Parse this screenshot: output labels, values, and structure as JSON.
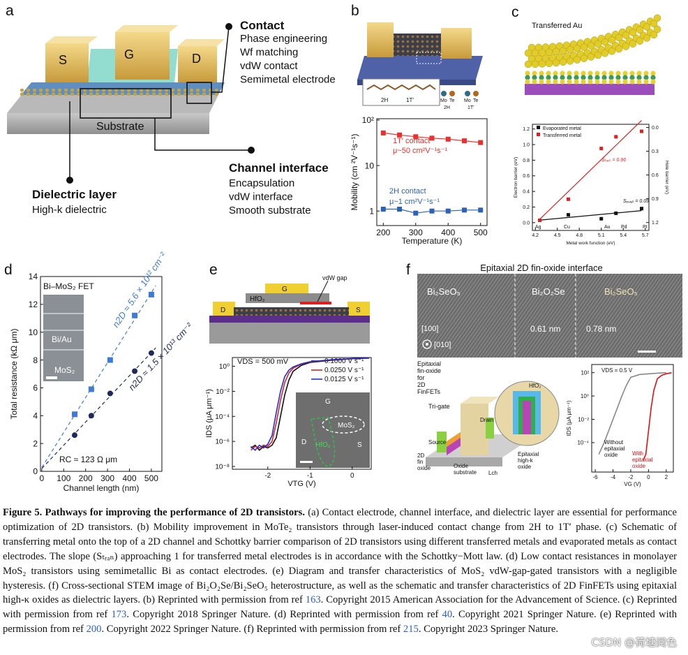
{
  "letters": [
    "a",
    "b",
    "c",
    "d",
    "e",
    "f"
  ],
  "diagram_a": {
    "electrodes": [
      "S",
      "G",
      "D"
    ],
    "substrate": "Substrate",
    "callouts": [
      {
        "title": "Contact",
        "items": [
          "Phase engineering",
          "Wf matching",
          "vdW contact",
          "Semimetal electrode"
        ]
      },
      {
        "title": "Channel interface",
        "items": [
          "Encapsulation",
          "vdW interface",
          "Smooth substrate"
        ]
      },
      {
        "title": "Dielectric layer",
        "items": [
          "High-k dielectric"
        ]
      }
    ]
  },
  "diagram_b": {
    "phases": [
      "2H",
      "1T′"
    ],
    "legend": [
      "Mo",
      "Te",
      "2H",
      "Mo",
      "Te",
      "1T′"
    ]
  },
  "diagram_c": {
    "label": "Transferred Au"
  },
  "diagram_e": {
    "labels": [
      "vdW gap",
      "G",
      "HfO₂",
      "D",
      "S"
    ],
    "inset": [
      "G",
      "MoS₂",
      "D",
      "S",
      "HfO₂"
    ]
  },
  "diagram_f": {
    "title": "Epitaxial 2D fin-oxide interface",
    "stem": [
      "Bi₂SeO₅",
      "Bi₂O₂Se",
      "Bi₂SeO₅",
      "0.61 nm",
      "0.78 nm",
      "[100]",
      "[010]"
    ],
    "schematic": [
      "Epitaxial fin-oxide for 2D FinFETs",
      "Tri-gate",
      "Drain",
      "Source",
      "HfO₂",
      "Epitaxial high-k oxide",
      "2D fin oxide",
      "Oxide substrate",
      "Lch"
    ]
  },
  "chart_data": [
    {
      "type": "line",
      "yscale": "log",
      "legend": "inline",
      "xlabel": "Temperature (K)",
      "ylabel": "Mobility (cm ²V⁻¹s⁻¹)",
      "x": [
        200,
        250,
        300,
        350,
        400,
        450,
        500
      ],
      "series": [
        {
          "name": "1T′ contact",
          "color": "#e8312f",
          "marker": "square",
          "values": [
            52,
            47,
            43,
            40,
            38,
            35,
            32
          ]
        },
        {
          "name": "2H contact",
          "color": "#2a62b8",
          "marker": "square",
          "values": [
            1.1,
            1.1,
            0.9,
            1.0,
            1.0,
            1.05,
            1.05
          ]
        }
      ],
      "annotations": [
        "μ~50 cm²V⁻¹s⁻¹",
        "μ~1 cm²V⁻¹s⁻¹"
      ],
      "xlim": [
        180,
        520
      ],
      "xticks": [
        200,
        300,
        400,
        500
      ],
      "ylim": [
        0.48,
        107
      ],
      "yticks": [
        1,
        10,
        {
          "value": 100,
          "label": "10²"
        }
      ]
    },
    {
      "type": "scatter",
      "legend": "upper left",
      "fit": "solid",
      "xlabel": "Metal work function (eV)",
      "ylabel": "Electron barrier (eV)",
      "y2label": "Hole barrier (eV)",
      "x": [
        4.26,
        4.65,
        5.1,
        5.3,
        5.65
      ],
      "series": [
        {
          "name": "Evaporated metal",
          "color": "#111111",
          "marker": "square",
          "values": [
            0.03,
            0.1,
            0.05,
            0.12,
            0.18
          ]
        },
        {
          "name": "Transferred metal",
          "color": "#e02020",
          "marker": "square",
          "values": [
            0.03,
            0.3,
            0.95,
            1.1,
            1.17
          ]
        }
      ],
      "annotations": [
        "Ag",
        "Cu",
        "Au",
        "Pd",
        "Pt",
        "Sₜᵣₐₙ = 0.96",
        "Sₑᵥₐₚ = 0.09"
      ],
      "xlim": [
        4.16,
        5.75
      ],
      "xticks": [
        4.2,
        4.5,
        4.8,
        5.1,
        5.4,
        5.7
      ],
      "ylim": [
        -0.1,
        1.26
      ],
      "yticks": [
        {
          "value": 0,
          "label": "0.0"
        },
        0.2,
        0.4,
        0.6,
        0.8,
        {
          "value": 1,
          "label": "1.0"
        },
        1.2
      ],
      "y2lim": [
        1.3,
        -0.04
      ],
      "y2ticks": [
        {
          "value": 0,
          "label": "0.0"
        },
        0.3,
        0.6,
        0.9,
        1.2
      ]
    },
    {
      "type": "scatter",
      "legend": "inline",
      "fit": "dashed",
      "xlabel": "Channel length (nm)",
      "ylabel": "Total resistance (kΩ μm)",
      "x": [
        150,
        226,
        312,
        424,
        500
      ],
      "series": [
        {
          "name": "n2D ≈ 5.6 × 10¹² cm⁻²",
          "color": "#3e7bd8",
          "marker": "square",
          "values": [
            4.1,
            5.9,
            8.0,
            11.2,
            12.7
          ]
        },
        {
          "name": "n2D ≈ 1.5 × 10¹³ cm⁻²",
          "color": "#1f2a5c",
          "marker": "circle",
          "values": [
            2.6,
            4.0,
            5.6,
            7.2,
            8.5
          ]
        }
      ],
      "annotations": [
        "Bi–MoS₂ FET",
        "Bi/Au",
        "MoS₂",
        "RC ≈ 123 Ω μm"
      ],
      "xlim": [
        -6,
        548
      ],
      "xticks": [
        0,
        100,
        200,
        300,
        400,
        500
      ],
      "ylim": [
        0,
        14
      ],
      "yticks": [
        0,
        2,
        4,
        6,
        8,
        10,
        12,
        14
      ]
    },
    {
      "type": "line",
      "yscale": "log",
      "legend": "upper right",
      "xlabel": "VTG (V)",
      "ylabel": "IDS (μA μm⁻¹)",
      "x": [
        -2.4,
        -2.3,
        -2.2,
        -2.1,
        -2.0,
        -1.9,
        -1.8,
        -1.7,
        -1.6,
        -1.5,
        -1.4,
        -1.2,
        -1.0,
        -0.5,
        0,
        0.4
      ],
      "series": [
        {
          "name": "0.1000 V s⁻¹",
          "color": "#111111",
          "marker": "none",
          "values": [
            3e-07,
            5e-07,
            2e-07,
            4e-07,
            3e-07,
            5e-07,
            2e-06,
            0.0001,
            0.005,
            0.08,
            0.4,
            1.2,
            2,
            3,
            4,
            4.5
          ]
        },
        {
          "name": "0.0250 V s⁻¹",
          "color": "#e02020",
          "marker": "none",
          "values": [
            2e-07,
            4e-07,
            3e-07,
            5e-07,
            4e-07,
            1e-06,
            3e-05,
            0.002,
            0.05,
            0.3,
            0.7,
            1.5,
            2.2,
            3.2,
            4,
            4.5
          ]
        },
        {
          "name": "0.0125 V s⁻¹",
          "color": "#2030d0",
          "marker": "none",
          "values": [
            4e-07,
            2e-07,
            5e-07,
            3e-07,
            6e-07,
            3e-06,
            0.0002,
            0.01,
            0.15,
            0.5,
            0.9,
            1.6,
            2.3,
            3.3,
            4.1,
            4.5
          ]
        }
      ],
      "annotations": [
        "VDS = 500 mV"
      ],
      "xlim": [
        -2.84,
        0.45
      ],
      "xticks": [
        -2,
        -1,
        0
      ],
      "ylim": [
        6e-09,
        5
      ],
      "yticks": [
        {
          "value": 1,
          "label": "10⁰"
        },
        {
          "value": 0.01,
          "label": "10⁻²"
        },
        {
          "value": 0.0001,
          "label": "10⁻⁴"
        },
        {
          "value": 1e-06,
          "label": "10⁻⁶"
        },
        {
          "value": 1e-08,
          "label": "10⁻⁸"
        }
      ]
    },
    {
      "type": "line",
      "yscale": "log",
      "legend": "inline",
      "xlabel": "VG (V)",
      "ylabel": "IDS (μA μm⁻¹)",
      "series": [
        {
          "name": "Without epitaxial oxide",
          "color": "#888888",
          "marker": "none",
          "x": [
            -5.6,
            -5,
            -4.5,
            -4,
            -3.5,
            -3,
            -2.5,
            -2,
            -1,
            0,
            1,
            2
          ],
          "values": [
            1e-05,
            0.0001,
            0.001,
            0.01,
            0.1,
            1,
            8,
            40,
            70,
            80,
            90,
            100
          ]
        },
        {
          "name": "With epitaxial oxide",
          "color": "#e01010",
          "marker": "none",
          "x": [
            -0.6,
            -0.3,
            0,
            0.3,
            0.6,
            1,
            1.5,
            2,
            2.6
          ],
          "values": [
            3e-06,
            1e-05,
            0.001,
            0.1,
            3,
            30,
            60,
            80,
            100
          ]
        }
      ],
      "annotations": [
        "VDS = 0.5 V"
      ],
      "xlim": [
        -6.4,
        2.8
      ],
      "xticks": [
        -6,
        -4,
        -2,
        0,
        2
      ],
      "ylim": [
        3e-07,
        500
      ],
      "yticks": [
        {
          "value": 100,
          "label": "10²"
        },
        {
          "value": 1,
          "label": "10⁰"
        },
        {
          "value": 0.01,
          "label": "10⁻²"
        },
        {
          "value": 0.0001,
          "label": "10⁻⁴"
        }
      ]
    }
  ],
  "caption": {
    "title": "Figure 5. Pathways for improving the performance of 2D transistors.",
    "parts": [
      "(a) Contact electrode, channel interface, and dielectric layer are essential for performance optimization of 2D transistors. (b) Mobility improvement in MoTe₂ transistors through laser-induced contact change from 2H to 1T′ phase. (c) Schematic of transferring metal onto the top of a 2D channel and Schottky barrier comparison of 2D transistors using different transferred metals and evaporated metals as contact electrodes. The slope (Sₜᵣₐₙ) approaching 1 for transferred metal electrodes is in accordance with the Schottky−Mott law. (d) Low contact resistances in monolayer MoS₂ transistors using semimetallic Bi as contact electrodes. (e) Diagram and transfer characteristics of MoS₂ vdW-gap-gated transistors with a negligible hysteresis. (f) Cross-sectional STEM image of Bi₂O₂Se/Bi₂SeO₅ heterostructure, as well as the schematic and transfer characteristics of 2D FinFETs using epitaxial high-κ oxides as dielectric layers. (b) Reprinted with permission from ref ",
      "163",
      ". Copyright 2015 American Association for the Advancement of Science. (c) Reprinted with permission from ref ",
      "173",
      ". Copyright 2018 Springer Nature. (d) Reprinted with permission from ref ",
      "40",
      ". Copyright 2021 Springer Nature. (e) Reprinted with permission from ref ",
      "200",
      ". Copyright 2022 Springer Nature. (f) Reprinted with permission from ref ",
      "215",
      ". Copyright 2023 Springer Nature."
    ]
  },
  "watermark": "CSDN @荷塘阅色"
}
